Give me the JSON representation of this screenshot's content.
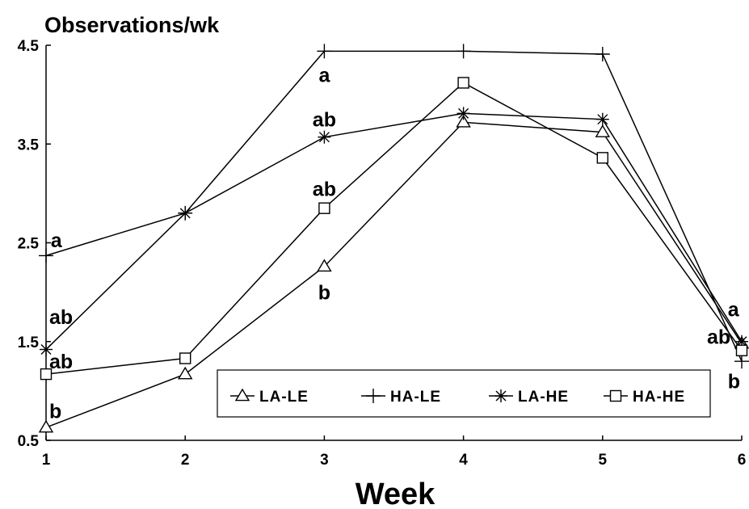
{
  "chart_data": {
    "type": "line",
    "ylabel": "Observations/wk",
    "xlabel": "Week",
    "x": [
      1,
      2,
      3,
      4,
      5,
      6
    ],
    "xlim": [
      1,
      6
    ],
    "ylim": [
      0.5,
      4.5
    ],
    "xticks": [
      "1",
      "2",
      "3",
      "4",
      "5",
      "6"
    ],
    "yticks": [
      "0.5",
      "1.5",
      "2.5",
      "3.5",
      "4.5"
    ],
    "grid": false,
    "legend_position": "bottom-right",
    "series": [
      {
        "name": "LA-LE",
        "marker": "triangle",
        "values": [
          0.63,
          1.17,
          2.26,
          3.72,
          3.62,
          1.48
        ]
      },
      {
        "name": "HA-LE",
        "marker": "plus",
        "values": [
          2.37,
          2.8,
          4.44,
          4.44,
          4.41,
          1.3
        ]
      },
      {
        "name": "LA-HE",
        "marker": "asterisk",
        "values": [
          1.42,
          2.8,
          3.57,
          3.81,
          3.75,
          1.5
        ]
      },
      {
        "name": "HA-HE",
        "marker": "square",
        "values": [
          1.17,
          1.33,
          2.85,
          4.12,
          3.36,
          1.41
        ]
      }
    ],
    "annotations": [
      {
        "text": "a",
        "x": 1,
        "y": 2.37,
        "dx": 0.01,
        "dy": 0.16
      },
      {
        "text": "ab",
        "x": 1,
        "y": 1.75,
        "dx": 0.0,
        "dy": 0.0
      },
      {
        "text": "ab",
        "x": 1,
        "y": 1.3,
        "dx": 0.0,
        "dy": 0.0
      },
      {
        "text": "b",
        "x": 1,
        "y": 0.8,
        "dx": 0.0,
        "dy": 0.0
      },
      {
        "text": "a",
        "x": 3,
        "y": 4.2,
        "dx": 0.0,
        "dy": 0.0
      },
      {
        "text": "ab",
        "x": 3,
        "y": 3.75,
        "dx": 0.0,
        "dy": 0.0
      },
      {
        "text": "ab",
        "x": 3,
        "y": 3.05,
        "dx": 0.0,
        "dy": 0.0
      },
      {
        "text": "b",
        "x": 3,
        "y": 2.0,
        "dx": 0.0,
        "dy": 0.0
      },
      {
        "text": "a",
        "x": 5.9,
        "y": 1.83,
        "dx": 0.0,
        "dy": 0.0
      },
      {
        "text": "ab",
        "x": 5.75,
        "y": 1.55,
        "dx": 0.0,
        "dy": 0.0
      },
      {
        "text": "b",
        "x": 5.9,
        "y": 1.1,
        "dx": 0.0,
        "dy": 0.0
      }
    ]
  }
}
